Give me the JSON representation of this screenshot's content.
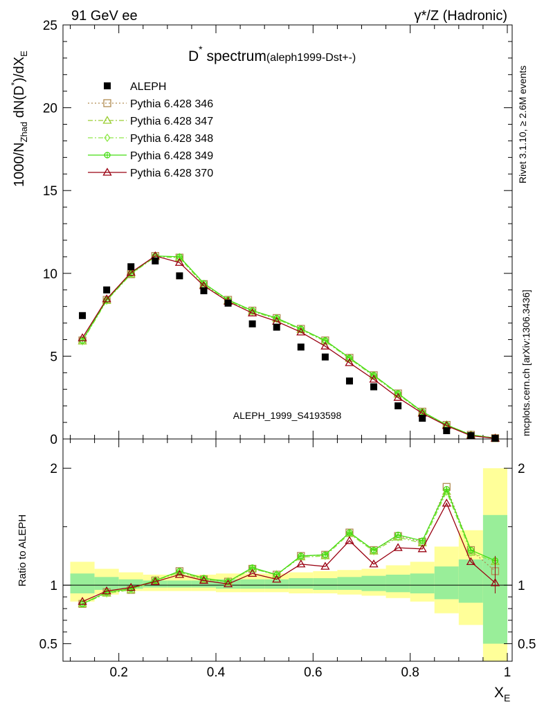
{
  "header": {
    "left": "91 GeV ee",
    "right": "γ*/Z (Hadronic)"
  },
  "side_labels": {
    "rivet": "Rivet 3.1.10, ≥ 2.6M events",
    "mcplots": "mcplots.cern.ch [arXiv:1306.3436]"
  },
  "watermark": "ALEPH_1999_S4193598",
  "chart_data": [
    {
      "type": "scatter",
      "panel": "main",
      "title": "D* spectrum",
      "title_main": "D",
      "title_sup": "*",
      "title_rest": " spectrum",
      "title_tag": "(aleph1999-Dst+-)",
      "ylabel": "1000/N_Zhad dN(D*)/dX_E",
      "xlabel": "X_E",
      "xlim": [
        0.085,
        1.01
      ],
      "ylim": [
        0,
        25
      ],
      "y_ticks": [
        0,
        5,
        10,
        15,
        20,
        25
      ],
      "x": [
        0.125,
        0.175,
        0.225,
        0.275,
        0.325,
        0.375,
        0.425,
        0.475,
        0.525,
        0.575,
        0.625,
        0.675,
        0.725,
        0.775,
        0.825,
        0.875,
        0.925,
        0.975
      ],
      "series": [
        {
          "name": "ALEPH",
          "color": "#000000",
          "marker": "square-filled",
          "dash": "none",
          "values": [
            7.45,
            9.0,
            10.4,
            10.75,
            9.85,
            8.95,
            8.2,
            6.95,
            6.75,
            5.55,
            4.95,
            3.5,
            3.15,
            2.0,
            1.25,
            0.5,
            0.2,
            0.04
          ]
        },
        {
          "name": "Pythia 6.428 346",
          "color": "#b08b50",
          "marker": "square-open",
          "dash": "2,3",
          "values": [
            5.95,
            8.4,
            9.95,
            11.05,
            10.95,
            9.35,
            8.4,
            7.75,
            7.3,
            6.65,
            5.95,
            4.9,
            3.85,
            2.75,
            1.65,
            0.85,
            0.25,
            0.05
          ]
        },
        {
          "name": "Pythia 6.428 347",
          "color": "#9acd32",
          "marker": "triangle-open",
          "dash": "7,3,2,3",
          "values": [
            5.9,
            8.35,
            9.95,
            11.0,
            10.95,
            9.3,
            8.35,
            7.7,
            7.25,
            6.6,
            5.9,
            4.85,
            3.8,
            2.7,
            1.6,
            0.85,
            0.25,
            0.05
          ]
        },
        {
          "name": "Pythia 6.428 348",
          "color": "#8fe84a",
          "marker": "diamond-open",
          "dash": "7,3,2,3",
          "values": [
            5.9,
            8.35,
            9.95,
            11.0,
            10.95,
            9.3,
            8.35,
            7.7,
            7.25,
            6.6,
            5.9,
            4.85,
            3.8,
            2.7,
            1.6,
            0.85,
            0.25,
            0.05
          ]
        },
        {
          "name": "Pythia 6.428 349",
          "color": "#44dd11",
          "marker": "circle-cross",
          "dash": "none",
          "values": [
            5.95,
            8.4,
            10.0,
            11.05,
            11.0,
            9.4,
            8.4,
            7.75,
            7.3,
            6.65,
            5.95,
            4.9,
            3.85,
            2.75,
            1.65,
            0.85,
            0.25,
            0.05
          ]
        },
        {
          "name": "Pythia 6.428 370",
          "color": "#990011",
          "marker": "triangle-open",
          "dash": "none",
          "values": [
            6.1,
            8.45,
            10.05,
            11.05,
            10.65,
            9.25,
            8.3,
            7.6,
            7.1,
            6.45,
            5.6,
            4.6,
            3.6,
            2.5,
            1.55,
            0.8,
            0.2,
            0.04
          ]
        }
      ]
    },
    {
      "type": "scatter",
      "panel": "ratio",
      "ylabel": "Ratio to ALEPH",
      "xlabel": "X_E",
      "xlim": [
        0.085,
        1.01
      ],
      "ylim": [
        0.35,
        2.25
      ],
      "y_ticks": [
        0.5,
        1,
        2
      ],
      "x_ticks": [
        0.2,
        0.4,
        0.6,
        0.8,
        1
      ],
      "x": [
        0.125,
        0.175,
        0.225,
        0.275,
        0.325,
        0.375,
        0.425,
        0.475,
        0.525,
        0.575,
        0.625,
        0.675,
        0.725,
        0.775,
        0.825,
        0.875,
        0.925,
        0.975
      ],
      "bands": {
        "edges": [
          0.1,
          0.15,
          0.2,
          0.25,
          0.3,
          0.35,
          0.4,
          0.45,
          0.5,
          0.55,
          0.6,
          0.65,
          0.7,
          0.75,
          0.8,
          0.85,
          0.9,
          0.95,
          1.0
        ],
        "yellow_low": [
          0.86,
          0.92,
          0.95,
          0.95,
          0.95,
          0.95,
          0.94,
          0.94,
          0.94,
          0.93,
          0.93,
          0.92,
          0.91,
          0.89,
          0.86,
          0.76,
          0.66,
          0.0
        ],
        "yellow_high": [
          1.2,
          1.14,
          1.11,
          1.09,
          1.09,
          1.09,
          1.1,
          1.1,
          1.1,
          1.11,
          1.12,
          1.13,
          1.14,
          1.17,
          1.2,
          1.33,
          1.47,
          2.0
        ],
        "green_low": [
          0.93,
          0.96,
          0.97,
          0.98,
          0.98,
          0.98,
          0.97,
          0.97,
          0.97,
          0.97,
          0.96,
          0.96,
          0.95,
          0.94,
          0.93,
          0.88,
          0.85,
          0.5
        ],
        "green_high": [
          1.1,
          1.07,
          1.05,
          1.04,
          1.04,
          1.04,
          1.05,
          1.05,
          1.05,
          1.06,
          1.06,
          1.07,
          1.08,
          1.09,
          1.1,
          1.16,
          1.22,
          1.6
        ],
        "yellow_color": "#ffff99",
        "green_color": "#99ee99"
      },
      "series": [
        {
          "name": "Pythia 6.428 346",
          "color": "#b08b50",
          "marker": "square-open",
          "dash": "2,3",
          "values": [
            0.84,
            0.94,
            0.96,
            1.04,
            1.12,
            1.05,
            1.03,
            1.14,
            1.09,
            1.25,
            1.26,
            1.45,
            1.3,
            1.42,
            1.37,
            1.84,
            1.3,
            1.12
          ]
        },
        {
          "name": "Pythia 6.428 347",
          "color": "#9acd32",
          "marker": "triangle-open",
          "dash": "7,3,2,3",
          "values": [
            0.84,
            0.93,
            0.96,
            1.04,
            1.11,
            1.05,
            1.03,
            1.14,
            1.09,
            1.24,
            1.25,
            1.44,
            1.29,
            1.41,
            1.36,
            1.8,
            1.28,
            1.2
          ]
        },
        {
          "name": "Pythia 6.428 348",
          "color": "#8fe84a",
          "marker": "diamond-open",
          "dash": "7,3,2,3",
          "values": [
            0.84,
            0.93,
            0.96,
            1.04,
            1.11,
            1.05,
            1.03,
            1.14,
            1.09,
            1.24,
            1.25,
            1.44,
            1.29,
            1.41,
            1.36,
            1.8,
            1.28,
            1.2
          ]
        },
        {
          "name": "Pythia 6.428 349",
          "color": "#44dd11",
          "marker": "circle-cross",
          "dash": "none",
          "values": [
            0.84,
            0.94,
            0.97,
            1.04,
            1.12,
            1.06,
            1.03,
            1.15,
            1.09,
            1.25,
            1.26,
            1.45,
            1.3,
            1.43,
            1.38,
            1.82,
            1.3,
            1.21
          ]
        },
        {
          "name": "Pythia 6.428 370",
          "color": "#990011",
          "marker": "triangle-open",
          "dash": "none",
          "values": [
            0.86,
            0.95,
            0.98,
            1.03,
            1.09,
            1.04,
            1.01,
            1.1,
            1.05,
            1.18,
            1.16,
            1.38,
            1.18,
            1.32,
            1.31,
            1.7,
            1.2,
            1.02
          ]
        }
      ]
    }
  ]
}
